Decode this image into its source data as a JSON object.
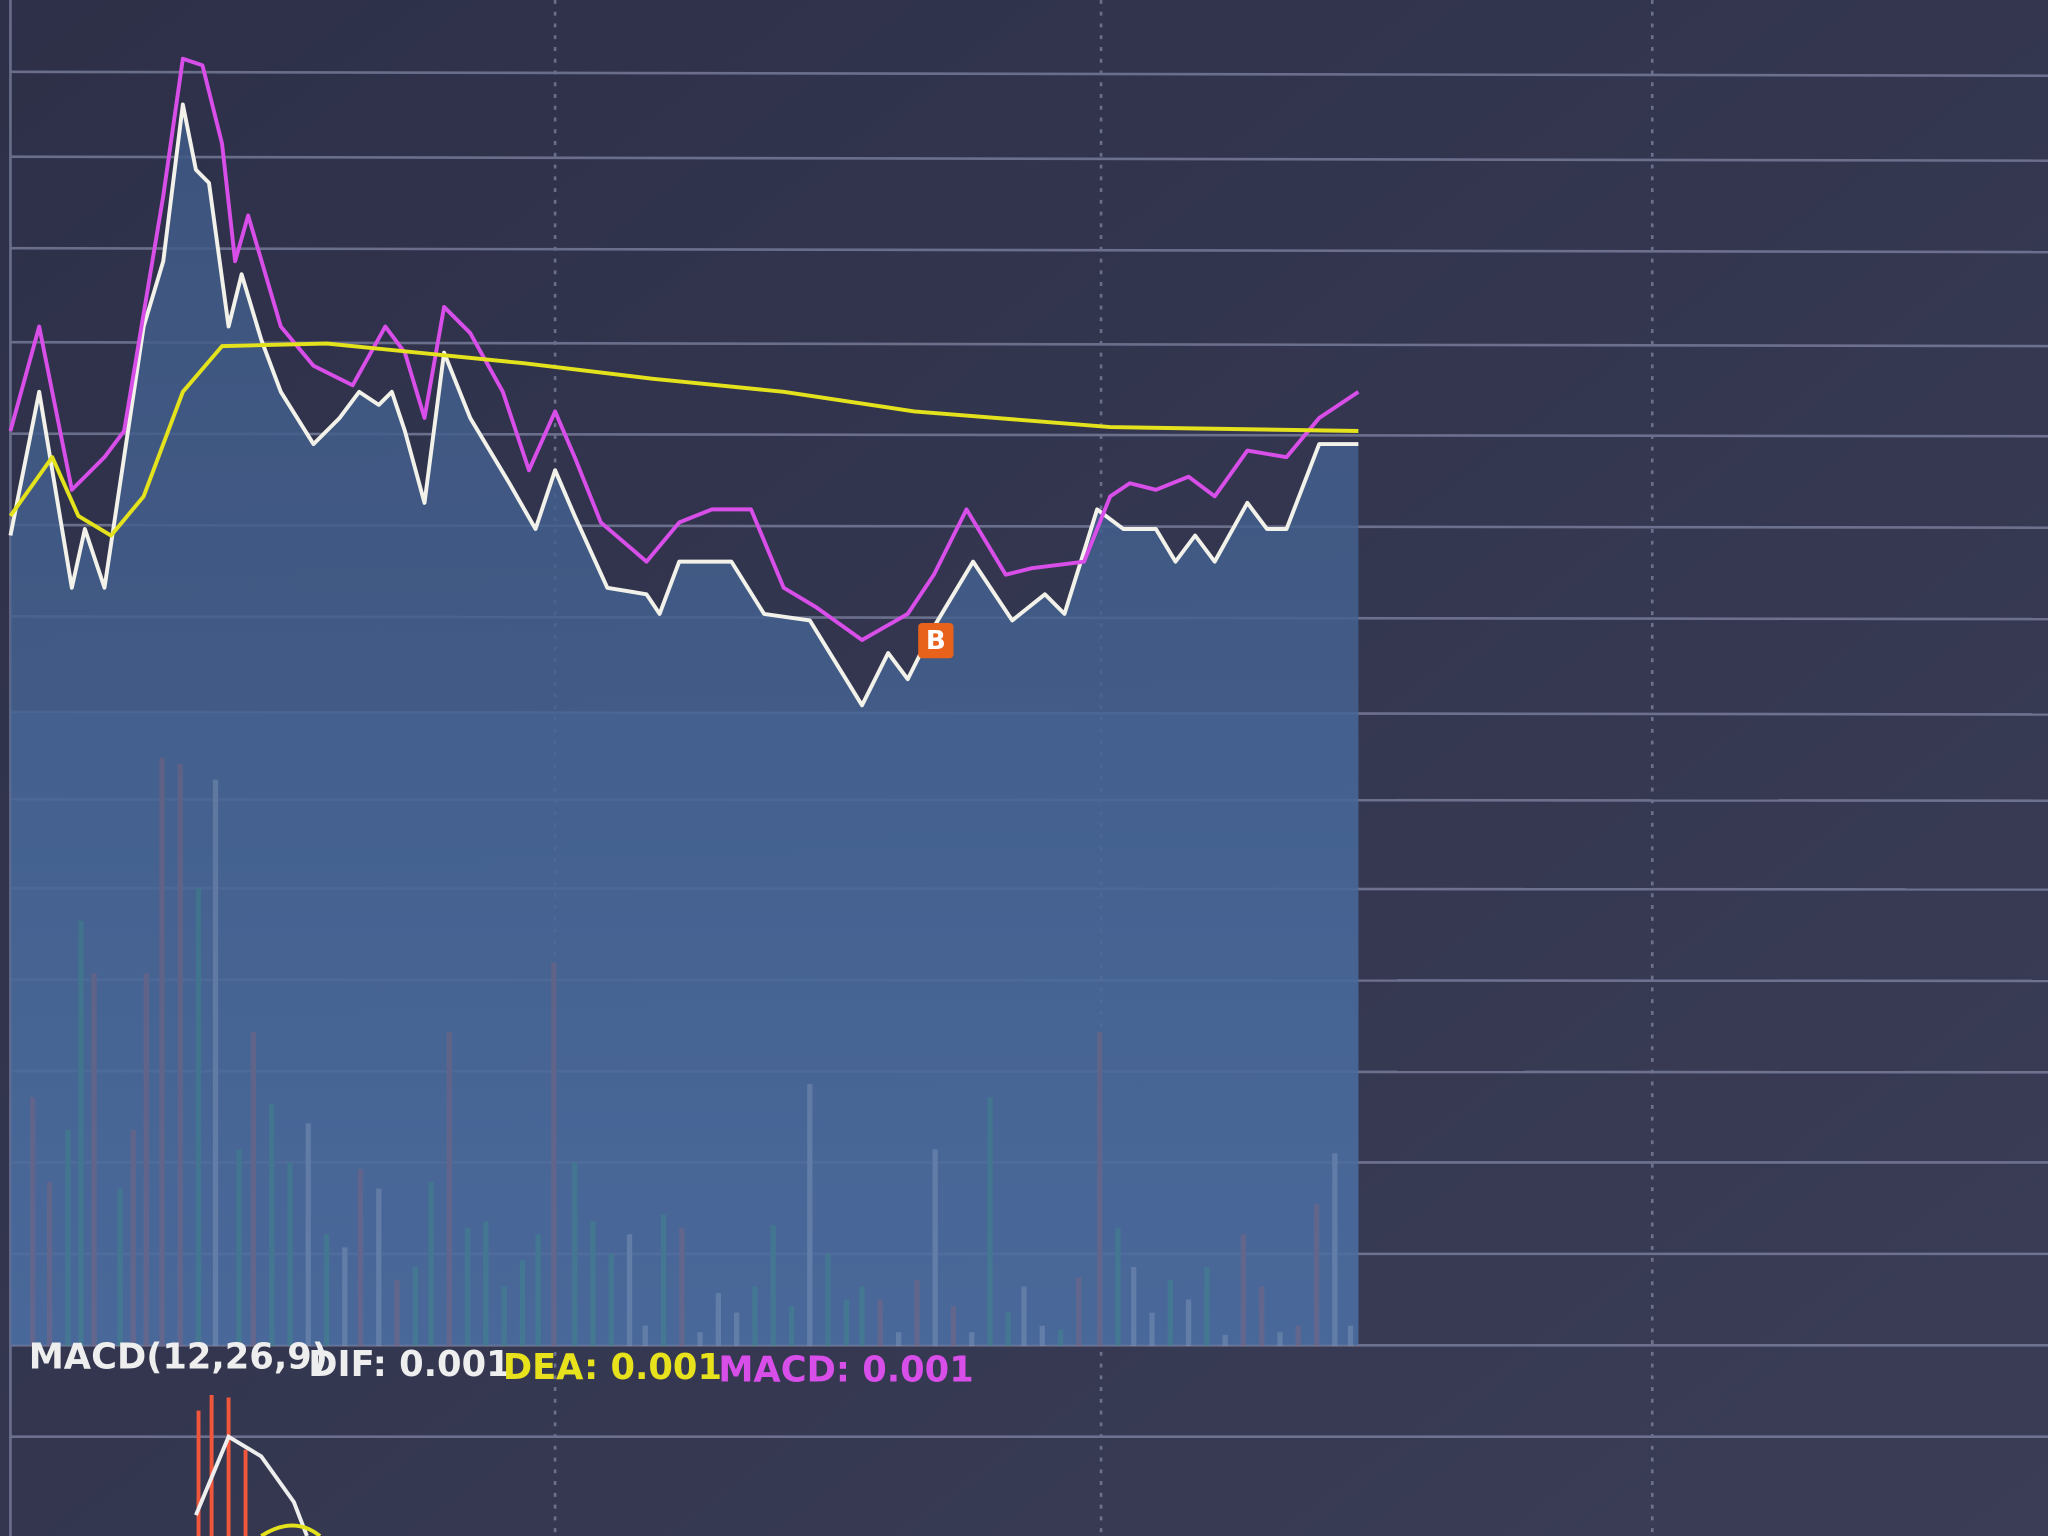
{
  "chart_data": [
    {
      "type": "line",
      "xlim": [
        0,
        1560
      ],
      "ylim": [
        0,
        560
      ],
      "annotation": "B",
      "series": [
        {
          "color": "#f2f2ea",
          "x": [
            0,
            22,
            47,
            57,
            72,
            87,
            102,
            117,
            132,
            142,
            152,
            167,
            177,
            192,
            207,
            232,
            252,
            267,
            282,
            292,
            302,
            317,
            332,
            352,
            382,
            402,
            417,
            432,
            457,
            487,
            497,
            512,
            552,
            577,
            612,
            652,
            672,
            687,
            707,
            737,
            767,
            792,
            807,
            832,
            852,
            877,
            892,
            907,
            922,
            947,
            962,
            977,
            1002,
            1032
          ],
          "values": [
            190,
            300,
            150,
            195,
            150,
            250,
            350,
            400,
            520,
            470,
            460,
            350,
            390,
            340,
            300,
            260,
            280,
            300,
            290,
            300,
            270,
            215,
            330,
            280,
            230,
            195,
            240,
            205,
            150,
            145,
            130,
            170,
            170,
            130,
            125,
            60,
            100,
            80,
            120,
            170,
            125,
            145,
            130,
            210,
            195,
            195,
            170,
            190,
            170,
            215,
            195,
            195,
            260,
            260
          ]
        },
        {
          "color": "#d84ee8",
          "x": [
            0,
            22,
            47,
            57,
            72,
            87,
            102,
            117,
            132,
            147,
            162,
            172,
            182,
            207,
            232,
            262,
            287,
            302,
            317,
            332,
            352,
            377,
            397,
            417,
            432,
            452,
            487,
            512,
            537,
            567,
            592,
            617,
            652,
            687,
            707,
            732,
            762,
            782,
            822,
            842,
            857,
            877,
            902,
            922,
            947,
            977,
            1002,
            1032
          ],
          "values": [
            270,
            350,
            225,
            235,
            250,
            270,
            360,
            450,
            555,
            550,
            490,
            400,
            435,
            350,
            320,
            305,
            350,
            330,
            280,
            365,
            345,
            300,
            240,
            285,
            250,
            200,
            170,
            200,
            210,
            210,
            150,
            135,
            110,
            130,
            160,
            210,
            160,
            165,
            170,
            220,
            230,
            225,
            235,
            220,
            255,
            250,
            280,
            300
          ]
        },
        {
          "color": "#e3e21c",
          "x": [
            0,
            32,
            52,
            77,
            102,
            132,
            162,
            242,
            392,
            492,
            592,
            692,
            842,
            1032
          ],
          "values": [
            205,
            250,
            205,
            190,
            220,
            300,
            335,
            337,
            322,
            310,
            300,
            285,
            273,
            270
          ]
        }
      ]
    },
    {
      "type": "bar",
      "xlim": [
        0,
        1560
      ],
      "ylim": [
        0,
        460
      ],
      "legend": {
        "name": "MACD(12,26,9)",
        "dif": "DIF: 0.001",
        "dea": "DEA: 0.001",
        "macd": "MACD: 0.001"
      },
      "legend_colors": [
        "#eeeeee",
        "#e8e21c",
        "#d84ee8"
      ],
      "x": [
        17,
        30,
        44,
        54,
        64,
        84,
        94,
        104,
        116,
        130,
        144,
        157,
        175,
        186,
        200,
        214,
        228,
        242,
        256,
        268,
        282,
        296,
        310,
        322,
        336,
        350,
        364,
        378,
        392,
        404,
        416,
        432,
        446,
        460,
        474,
        486,
        500,
        514,
        528,
        542,
        556,
        570,
        584,
        598,
        612,
        626,
        640,
        652,
        666,
        680,
        694,
        708,
        722,
        736,
        750,
        764,
        776,
        790,
        804,
        818,
        834,
        848,
        860,
        874,
        888,
        902,
        916,
        930,
        944,
        958,
        972,
        986,
        1000,
        1014,
        1026
      ],
      "values": [
        190,
        125,
        165,
        325,
        285,
        120,
        165,
        285,
        450,
        445,
        350,
        433,
        150,
        240,
        185,
        140,
        170,
        85,
        75,
        135,
        120,
        50,
        60,
        125,
        240,
        90,
        95,
        45,
        65,
        85,
        293,
        140,
        95,
        70,
        85,
        15,
        100,
        90,
        10,
        40,
        25,
        45,
        92,
        30,
        200,
        70,
        35,
        45,
        35,
        10,
        50,
        150,
        30,
        10,
        190,
        25,
        45,
        15,
        12,
        52,
        240,
        90,
        60,
        25,
        50,
        35,
        60,
        8,
        85,
        45,
        10,
        15,
        108,
        147,
        15
      ],
      "colors": [
        "#f0563b",
        "#f0563b",
        "#22c55e",
        "#22c55e",
        "#f0563b",
        "#22c55e",
        "#f0563b",
        "#f0563b",
        "#f0563b",
        "#f0563b",
        "#22c55e",
        "#eeeeee",
        "#22c55e",
        "#f0563b",
        "#22c55e",
        "#22c55e",
        "#eeeeee",
        "#22c55e",
        "#eeeeee",
        "#f0563b",
        "#eeeeee",
        "#f0563b",
        "#22c55e",
        "#22c55e",
        "#f0563b",
        "#22c55e",
        "#22c55e",
        "#22c55e",
        "#22c55e",
        "#22c55e",
        "#f0563b",
        "#22c55e",
        "#22c55e",
        "#22c55e",
        "#eeeeee",
        "#eeeeee",
        "#22c55e",
        "#f0563b",
        "#eeeeee",
        "#eeeeee",
        "#eeeeee",
        "#22c55e",
        "#22c55e",
        "#22c55e",
        "#eeeeee",
        "#22c55e",
        "#22c55e",
        "#22c55e",
        "#f0563b",
        "#eeeeee",
        "#f0563b",
        "#eeeeee",
        "#f0563b",
        "#eeeeee",
        "#22c55e",
        "#22c55e",
        "#eeeeee",
        "#eeeeee",
        "#22c55e",
        "#f0563b",
        "#f0563b",
        "#22c55e",
        "#eeeeee",
        "#eeeeee",
        "#22c55e",
        "#eeeeee",
        "#22c55e",
        "#eeeeee",
        "#f0563b",
        "#f0563b",
        "#eeeeee",
        "#f0563b",
        "#f0563b",
        "#eeeeee",
        "#eeeeee"
      ]
    }
  ]
}
